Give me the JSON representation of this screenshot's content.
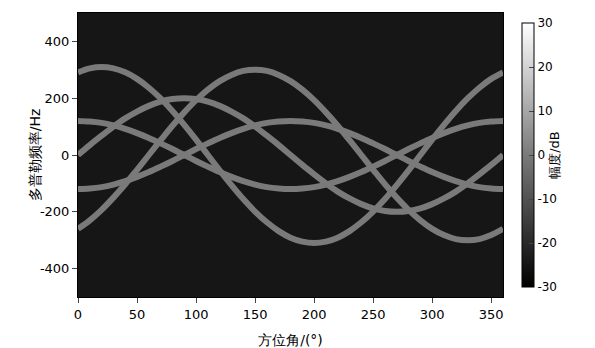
{
  "chart_data": {
    "type": "line",
    "x_label": "方位角/(°)",
    "y_label": "多普勒频率/Hz",
    "x": [
      0,
      10,
      20,
      30,
      40,
      50,
      60,
      70,
      80,
      90,
      100,
      110,
      120,
      130,
      140,
      150,
      160,
      170,
      180,
      190,
      200,
      210,
      220,
      230,
      240,
      250,
      260,
      270,
      280,
      290,
      300,
      310,
      320,
      330,
      340,
      350,
      360
    ],
    "xlim": [
      0,
      360
    ],
    "xticks": [
      0,
      50,
      100,
      150,
      200,
      250,
      300,
      350
    ],
    "ylim": [
      -500,
      500
    ],
    "yticks": [
      -400,
      -200,
      0,
      200,
      400
    ],
    "grid": false,
    "colorbar": {
      "label": "幅度/dB",
      "range": [
        -30,
        30
      ],
      "ticks": [
        -30,
        -20,
        -10,
        0,
        10,
        20,
        30
      ]
    },
    "series": [
      {
        "color": "#7a7a7a",
        "values": [
          291,
          305,
          310,
          305,
          291,
          268,
          237,
          199,
          155,
          106,
          54,
          0,
          -54,
          -106,
          -155,
          -199,
          -237,
          -268,
          -291,
          -305,
          -310,
          -305,
          -291,
          -268,
          -237,
          -199,
          -155,
          -106,
          -54,
          0,
          54,
          106,
          155,
          199,
          237,
          268,
          291
        ]
      },
      {
        "color": "#7a7a7a",
        "values": [
          -260,
          -230,
          -193,
          -150,
          -103,
          -52,
          0,
          52,
          103,
          150,
          193,
          230,
          260,
          282,
          296,
          300,
          296,
          282,
          260,
          230,
          193,
          150,
          103,
          52,
          0,
          -52,
          -103,
          -150,
          -193,
          -230,
          -260,
          -282,
          -296,
          -300,
          -296,
          -282,
          -260
        ]
      },
      {
        "color": "#7a7a7a",
        "values": [
          0,
          35,
          68,
          100,
          129,
          153,
          173,
          188,
          197,
          200,
          197,
          188,
          173,
          153,
          129,
          100,
          68,
          35,
          0,
          -35,
          -68,
          -100,
          -129,
          -153,
          -173,
          -188,
          -197,
          -200,
          -197,
          -188,
          -173,
          -153,
          -129,
          -100,
          -68,
          -35,
          0
        ]
      },
      {
        "color": "#7a7a7a",
        "values": [
          120,
          118,
          113,
          104,
          92,
          77,
          60,
          41,
          21,
          0,
          -21,
          -41,
          -60,
          -77,
          -92,
          -104,
          -113,
          -118,
          -120,
          -118,
          -113,
          -104,
          -92,
          -77,
          -60,
          -41,
          -21,
          0,
          21,
          41,
          60,
          77,
          92,
          104,
          113,
          118,
          120
        ]
      },
      {
        "color": "#7a7a7a",
        "values": [
          -120,
          -118,
          -113,
          -104,
          -92,
          -77,
          -60,
          -41,
          -21,
          0,
          21,
          41,
          60,
          77,
          92,
          104,
          113,
          118,
          120,
          118,
          113,
          104,
          92,
          77,
          60,
          41,
          21,
          0,
          -21,
          -41,
          -60,
          -77,
          -92,
          -104,
          -113,
          -118,
          -120
        ]
      }
    ]
  }
}
